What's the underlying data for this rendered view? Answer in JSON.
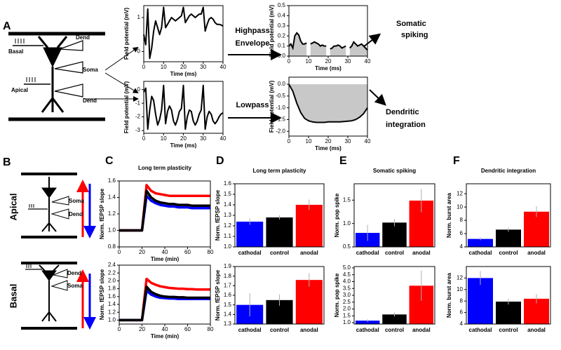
{
  "panel_labels": [
    "A",
    "B",
    "C",
    "D",
    "E",
    "F"
  ],
  "schematic_a": {
    "basal": "Basal",
    "apical": "Apical",
    "dend_top": "Dend",
    "soma": "Soma",
    "dend_bottom": "Dend"
  },
  "filters": {
    "highpass": "Highpass",
    "envelope": "Envelope",
    "lowpass": "Lowpass"
  },
  "outputs": {
    "somatic": [
      "Somatic",
      "spiking"
    ],
    "dendritic": [
      "Dendritic",
      "integration"
    ]
  },
  "schematic_b": {
    "apical": {
      "title": "Apical",
      "soma": "Soma",
      "dend": "Dend"
    },
    "basal": {
      "title": "Basal",
      "dend": "Dend",
      "soma": "Soma"
    }
  },
  "chart_data": [
    {
      "type": "line",
      "xlabel": "Time (ms)",
      "ylabel": "Field potential (mV)",
      "color": "#000000",
      "x": [
        0,
        1,
        2,
        3,
        4,
        5,
        6,
        7,
        8,
        9,
        10,
        11,
        12,
        13,
        14,
        15,
        16,
        17,
        18,
        19,
        20,
        21,
        22,
        23,
        24,
        25,
        26,
        27,
        28,
        29,
        30,
        31,
        32,
        33,
        34,
        35,
        36,
        37,
        38,
        39,
        40
      ],
      "values": [
        0.5,
        0.2,
        1.25,
        -0.2,
        0.1,
        0.6,
        0.9,
        0.7,
        0.5,
        0.7,
        1.3,
        0.7,
        0.8,
        0.9,
        1.0,
        0.95,
        0.9,
        0.95,
        1.0,
        1.05,
        1.3,
        0.85,
        0.95,
        1.05,
        1.1,
        1.05,
        1.0,
        1.05,
        1.1,
        1.1,
        1.3,
        0.6,
        0.8,
        0.95,
        1.0,
        0.95,
        0.85,
        0.8,
        0.8,
        0.78,
        0.75
      ],
      "xlim": [
        0,
        40
      ],
      "ylim": [
        -0.3,
        1.35
      ],
      "xticks": [
        0,
        10,
        20,
        30,
        40
      ],
      "yticks": [
        0,
        1
      ]
    },
    {
      "type": "line",
      "xlabel": "Time (ms)",
      "ylabel": "Field potential (mV)",
      "color": "#000000",
      "x": [
        0,
        1,
        2,
        3,
        4,
        5,
        6,
        7,
        8,
        9,
        10,
        11,
        12,
        13,
        14,
        15,
        16,
        17,
        18,
        19,
        20,
        21,
        22,
        23,
        24,
        25,
        26,
        27,
        28,
        29,
        30,
        31,
        32,
        33,
        34,
        35,
        36,
        37,
        38,
        39,
        40
      ],
      "values": [
        -0.2,
        0.1,
        -2.9,
        -1.5,
        -0.5,
        -0.8,
        -1.8,
        -2.6,
        -2.2,
        -1.5,
        0.3,
        -2.5,
        -1.6,
        -1.2,
        -1.5,
        -2.3,
        -2.6,
        -2.2,
        -1.6,
        -1.4,
        0.3,
        -2.9,
        -2.0,
        -1.5,
        -1.6,
        -2.3,
        -2.6,
        -2.3,
        -1.8,
        -1.5,
        0.3,
        -2.9,
        -2.0,
        -1.6,
        -1.8,
        -2.3,
        -2.5,
        -2.3,
        -2.0,
        -1.8,
        -1.7
      ],
      "xlim": [
        0,
        40
      ],
      "ylim": [
        -3.2,
        0.6
      ],
      "xticks": [
        0,
        10,
        20,
        30,
        40
      ],
      "yticks": [
        0,
        -1,
        -2,
        -3
      ]
    },
    {
      "type": "area",
      "xlabel": "Time (ms)",
      "ylabel": "Field potential (mV)",
      "color": "#000000",
      "fill": "#c8c8c8",
      "x": [
        0,
        1,
        2,
        3,
        4,
        5,
        6,
        7,
        8,
        9,
        10,
        11,
        12,
        13,
        14,
        15,
        16,
        17,
        18,
        19,
        20,
        21,
        22,
        23,
        24,
        25,
        26,
        27,
        28,
        29,
        30,
        31,
        32,
        33,
        34,
        35,
        36,
        37,
        38,
        39,
        40
      ],
      "values": [
        0.1,
        0.12,
        0.08,
        0.2,
        0.23,
        0.21,
        0.15,
        0.12,
        0.12,
        0.13,
        null,
        0.12,
        0.13,
        0.14,
        0.13,
        0.12,
        0.1,
        0.11,
        0.1,
        0.1,
        null,
        0.07,
        0.08,
        0.1,
        0.1,
        0.11,
        0.1,
        0.08,
        0.09,
        0.1,
        null,
        0.08,
        0.1,
        0.14,
        0.12,
        0.1,
        0.11,
        0.12,
        0.1,
        0.08,
        0.06
      ],
      "xlim": [
        0,
        40
      ],
      "ylim": [
        0,
        0.5
      ],
      "xticks": [
        0,
        10,
        20,
        30,
        40
      ],
      "yticks": [
        {
          "value": 0,
          "label": "0.0"
        },
        0.1,
        0.2,
        0.3,
        0.4,
        0.5
      ]
    },
    {
      "type": "area",
      "xlabel": "Time (ms)",
      "ylabel": "Field potential (mV)",
      "color": "#000000",
      "fill": "#c8c8c8",
      "x": [
        0,
        2,
        4,
        6,
        8,
        10,
        12,
        14,
        16,
        18,
        20,
        22,
        24,
        26,
        28,
        30,
        32,
        34,
        36,
        38,
        40
      ],
      "values": [
        0.0,
        -0.3,
        -0.8,
        -1.2,
        -1.45,
        -1.55,
        -1.6,
        -1.62,
        -1.62,
        -1.62,
        -1.6,
        -1.6,
        -1.6,
        -1.6,
        -1.58,
        -1.57,
        -1.55,
        -1.5,
        -1.4,
        -1.25,
        -1.0
      ],
      "xlim": [
        0,
        40
      ],
      "ylim": [
        -2.2,
        0.3
      ],
      "xticks": [
        0,
        10,
        20,
        30,
        40
      ],
      "yticks": [
        {
          "value": 0,
          "label": "0.0"
        },
        -0.5,
        {
          "value": -1,
          "label": "-1.0"
        },
        -1.5,
        {
          "value": -2,
          "label": "-2.0"
        }
      ]
    },
    {
      "type": "line",
      "title": "Long term plasticity",
      "xlabel": "Time (min)",
      "ylabel": "Norm. fEPSP slope",
      "x": [
        0,
        4,
        8,
        12,
        16,
        20,
        24,
        28,
        32,
        36,
        40,
        44,
        48,
        52,
        56,
        60,
        64,
        68,
        72,
        76,
        80
      ],
      "series": [
        {
          "color": "#0000ff",
          "values": [
            1.0,
            1.0,
            1.0,
            1.0,
            1.0,
            1.0,
            1.42,
            1.36,
            1.33,
            1.31,
            1.3,
            1.29,
            1.29,
            1.28,
            1.28,
            1.28,
            1.27,
            1.27,
            1.27,
            1.27,
            1.27
          ]
        },
        {
          "color": "#ff0000",
          "values": [
            1.0,
            1.0,
            1.0,
            1.0,
            1.0,
            1.0,
            1.55,
            1.48,
            1.45,
            1.44,
            1.43,
            1.42,
            1.42,
            1.42,
            1.42,
            1.42,
            1.42,
            1.42,
            1.42,
            1.42,
            1.42
          ]
        },
        {
          "color": "#000000",
          "values": [
            1.0,
            1.0,
            1.0,
            1.0,
            1.0,
            1.0,
            1.48,
            1.4,
            1.36,
            1.34,
            1.33,
            1.32,
            1.32,
            1.31,
            1.31,
            1.31,
            1.3,
            1.3,
            1.3,
            1.3,
            1.3
          ]
        }
      ],
      "xlim": [
        0,
        80
      ],
      "ylim": [
        0.8,
        1.6
      ],
      "xticks": [
        0,
        20,
        40,
        60,
        80
      ],
      "yticks": [
        0.8,
        {
          "value": 1,
          "label": "1.0"
        },
        1.2,
        1.4,
        1.6
      ]
    },
    {
      "type": "line",
      "xlabel": "Time (min)",
      "ylabel": "Norm. fEPSP slope",
      "x": [
        0,
        4,
        8,
        12,
        16,
        20,
        24,
        28,
        32,
        36,
        40,
        44,
        48,
        52,
        56,
        60,
        64,
        68,
        72,
        76,
        80
      ],
      "series": [
        {
          "color": "#ff0000",
          "values": [
            1.0,
            1.0,
            1.0,
            1.0,
            1.0,
            1.0,
            2.05,
            1.95,
            1.9,
            1.86,
            1.84,
            1.82,
            1.81,
            1.8,
            1.8,
            1.79,
            1.79,
            1.78,
            1.78,
            1.78,
            1.78
          ]
        },
        {
          "color": "#0000ff",
          "values": [
            1.0,
            1.0,
            1.0,
            1.0,
            1.0,
            1.0,
            1.75,
            1.65,
            1.6,
            1.57,
            1.56,
            1.55,
            1.55,
            1.54,
            1.54,
            1.54,
            1.54,
            1.54,
            1.54,
            1.54,
            1.54
          ]
        },
        {
          "color": "#000000",
          "values": [
            1.0,
            1.0,
            1.0,
            1.0,
            1.0,
            1.0,
            1.85,
            1.72,
            1.66,
            1.62,
            1.6,
            1.59,
            1.59,
            1.58,
            1.58,
            1.57,
            1.57,
            1.57,
            1.57,
            1.57,
            1.57
          ]
        }
      ],
      "xlim": [
        0,
        80
      ],
      "ylim": [
        0.9,
        2.4
      ],
      "xticks": [
        0,
        20,
        40,
        60,
        80
      ],
      "yticks": [
        {
          "value": 1,
          "label": "1.0"
        },
        1.2,
        1.4,
        1.6,
        1.8,
        {
          "value": 2,
          "label": "2.0"
        },
        2.2,
        2.4
      ]
    },
    {
      "type": "bar",
      "title": "Long term plasticity",
      "ylabel": "Norm. fEPSP slope",
      "categories": [
        "cathodal",
        "control",
        "anodal"
      ],
      "colors": [
        "#0000ff",
        "#000000",
        "#ff0000"
      ],
      "values": [
        1.24,
        1.28,
        1.4
      ],
      "errors": [
        0.03,
        0.02,
        0.05
      ],
      "ylim": [
        1.0,
        1.6
      ],
      "yticks": [
        {
          "value": 1,
          "label": "1.0"
        },
        1.1,
        1.2,
        1.3,
        1.4,
        1.5,
        1.6
      ]
    },
    {
      "type": "bar",
      "ylabel": "Norm. fEPSP slope",
      "categories": [
        "cathodal",
        "control",
        "anodal"
      ],
      "colors": [
        "#0000ff",
        "#000000",
        "#ff0000"
      ],
      "values": [
        1.5,
        1.55,
        1.76
      ],
      "errors": [
        0.12,
        0.06,
        0.07
      ],
      "ylim": [
        1.3,
        1.9
      ],
      "yticks": [
        1.3,
        1.4,
        1.5,
        1.6,
        1.7,
        1.8,
        1.9
      ]
    },
    {
      "type": "bar",
      "title": "Somatic spiking",
      "ylabel": "Norm. pop spike",
      "categories": [
        "cathodal",
        "control",
        "anodal"
      ],
      "colors": [
        "#0000ff",
        "#000000",
        "#ff0000"
      ],
      "values": [
        0.8,
        1.02,
        1.49
      ],
      "errors": [
        0.17,
        0.08,
        0.25
      ],
      "ylim": [
        0.5,
        1.85
      ],
      "yticks": [
        0.5,
        {
          "value": 1,
          "label": "1.0"
        },
        1.5
      ]
    },
    {
      "type": "bar",
      "ylabel": "Norm. pop spike",
      "categories": [
        "cathodal",
        "control",
        "anodal"
      ],
      "colors": [
        "#0000ff",
        "#000000",
        "#ff0000"
      ],
      "values": [
        1.15,
        1.6,
        3.7
      ],
      "errors": [
        0.1,
        0.15,
        1.1
      ],
      "ylim": [
        0.9,
        5.1
      ],
      "yticks": [
        {
          "value": 1,
          "label": "1.0"
        },
        1.5,
        {
          "value": 2,
          "label": "2.0"
        },
        2.5,
        {
          "value": 3,
          "label": "3.0"
        },
        3.5,
        {
          "value": 4,
          "label": "4.0"
        },
        4.5,
        {
          "value": 5,
          "label": "5.0"
        }
      ]
    },
    {
      "type": "bar",
      "title": "Dendritic integration",
      "ylabel": "Norm. burst area",
      "categories": [
        "cathodal",
        "control",
        "anodal"
      ],
      "colors": [
        "#0000ff",
        "#000000",
        "#ff0000"
      ],
      "values": [
        5.2,
        6.6,
        9.3
      ],
      "errors": [
        0.2,
        0.3,
        0.8
      ],
      "ylim": [
        4,
        13.5
      ],
      "yticks": [
        4,
        6,
        8,
        10,
        12
      ]
    },
    {
      "type": "bar",
      "ylabel": "Norm. burst area",
      "categories": [
        "cathodal",
        "control",
        "anodal"
      ],
      "colors": [
        "#0000ff",
        "#000000",
        "#ff0000"
      ],
      "values": [
        12.0,
        7.9,
        8.4
      ],
      "errors": [
        1.2,
        0.5,
        0.8
      ],
      "ylim": [
        4,
        14
      ],
      "yticks": [
        4,
        6,
        8,
        10,
        12
      ]
    }
  ]
}
